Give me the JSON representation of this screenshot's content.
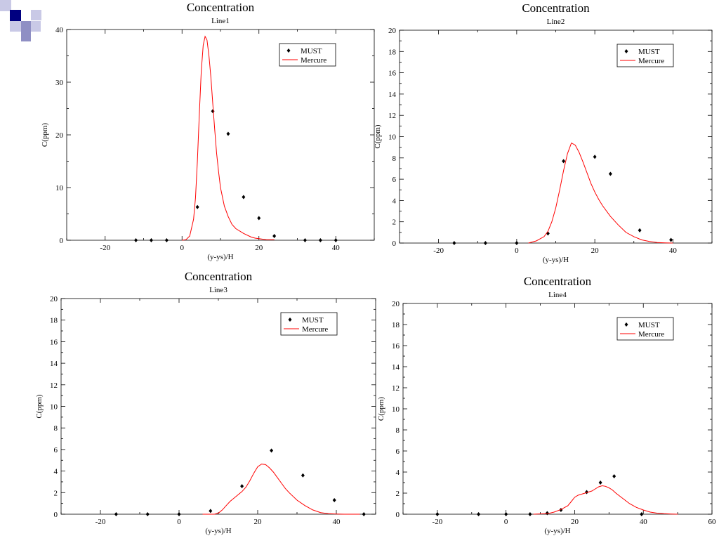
{
  "colors": {
    "model_line": "#ff0000",
    "markers": "#000000",
    "logo_dark": "#000080",
    "logo_mid": "#8f8fc4",
    "logo_light": "#c9c9e6"
  },
  "logo_icon": "squares-logo-icon",
  "chart_data": [
    {
      "type": "line",
      "title": "Concentration",
      "subtitle": "Line1",
      "xlabel": "(y-ys)/H",
      "ylabel": "C(ppm)",
      "xlim": [
        -30,
        50
      ],
      "ylim": [
        0,
        40
      ],
      "xticks": [
        -20,
        0,
        20,
        40
      ],
      "xtick_labels": [
        "-20",
        "0",
        "20",
        "40"
      ],
      "yticks": [
        0,
        10,
        20,
        30,
        40
      ],
      "ytick_labels": [
        "0",
        "10",
        "20",
        "30",
        "40"
      ],
      "grid": false,
      "legend": {
        "position": "top-right",
        "entries": [
          "MUST",
          "Mercure"
        ]
      },
      "series": [
        {
          "name": "MUST",
          "kind": "scatter",
          "x": [
            -12,
            -8,
            -4,
            4,
            8,
            12,
            16,
            20,
            24,
            32,
            36,
            40
          ],
          "y": [
            0,
            0,
            0,
            6.3,
            24.5,
            20.2,
            8.2,
            4.2,
            0.8,
            0,
            0,
            0
          ]
        },
        {
          "name": "Mercure",
          "kind": "line",
          "x": [
            0,
            1,
            2,
            3,
            3.5,
            4,
            4.5,
            5,
            5.5,
            6,
            6.5,
            7,
            7.5,
            8,
            8.5,
            9,
            9.5,
            10,
            11,
            12,
            13,
            14,
            16,
            18,
            19,
            20,
            22,
            23,
            24
          ],
          "y": [
            0,
            0.1,
            0.8,
            4,
            8,
            15,
            24,
            32,
            37,
            38.7,
            38,
            35,
            31,
            26,
            21,
            16.5,
            13,
            10,
            6.5,
            4.5,
            3,
            2.2,
            1.3,
            0.6,
            0.4,
            0.3,
            0.1,
            0.1,
            0.1
          ]
        }
      ]
    },
    {
      "type": "line",
      "title": "Concentration",
      "subtitle": "Line2",
      "xlabel": "(y-ys)/H",
      "ylabel": "C(ppm)",
      "xlim": [
        -30,
        50
      ],
      "ylim": [
        0,
        20
      ],
      "xticks": [
        -20,
        0,
        20,
        40
      ],
      "xtick_labels": [
        "-20",
        "0",
        "20",
        "40"
      ],
      "yticks": [
        0,
        2,
        4,
        6,
        8,
        10,
        12,
        14,
        16,
        18,
        20
      ],
      "ytick_labels": [
        "0",
        "2",
        "4",
        "6",
        "8",
        "10",
        "12",
        "14",
        "16",
        "18",
        "20"
      ],
      "grid": false,
      "legend": {
        "position": "top-right",
        "entries": [
          "MUST",
          "Mercure"
        ]
      },
      "series": [
        {
          "name": "MUST",
          "kind": "scatter",
          "x": [
            -16,
            -8,
            0,
            8,
            12,
            20,
            24,
            31.5,
            39.5
          ],
          "y": [
            0,
            0,
            0,
            0.9,
            7.7,
            8.1,
            6.5,
            1.2,
            0.3
          ]
        },
        {
          "name": "Mercure",
          "kind": "line",
          "x": [
            3,
            5,
            7,
            8,
            9,
            10,
            11,
            12,
            13,
            14,
            15,
            16,
            17,
            18,
            19,
            20,
            21,
            22,
            24,
            26,
            28,
            30,
            32,
            34,
            36,
            38,
            40
          ],
          "y": [
            0,
            0.2,
            0.6,
            1.1,
            2,
            3.3,
            5,
            6.8,
            8.4,
            9.4,
            9.2,
            8.5,
            7.6,
            6.6,
            5.6,
            4.8,
            4.1,
            3.5,
            2.5,
            1.7,
            1,
            0.6,
            0.3,
            0.15,
            0.05,
            0.02,
            0
          ]
        }
      ]
    },
    {
      "type": "line",
      "title": "Concentration",
      "subtitle": "Line3",
      "xlabel": "(y-ys)/H",
      "ylabel": "C(ppm)",
      "xlim": [
        -30,
        50
      ],
      "ylim": [
        0,
        20
      ],
      "xticks": [
        -20,
        0,
        20,
        40
      ],
      "xtick_labels": [
        "-20",
        "0",
        "20",
        "40"
      ],
      "yticks": [
        0,
        2,
        4,
        6,
        8,
        10,
        12,
        14,
        16,
        18,
        20
      ],
      "ytick_labels": [
        "0",
        "2",
        "4",
        "6",
        "8",
        "10",
        "12",
        "14",
        "16",
        "18",
        "20"
      ],
      "grid": false,
      "legend": {
        "position": "top-right",
        "entries": [
          "MUST",
          "Mercure"
        ]
      },
      "series": [
        {
          "name": "MUST",
          "kind": "scatter",
          "x": [
            -16,
            -8,
            0,
            8,
            16,
            23.5,
            31.5,
            39.5,
            47
          ],
          "y": [
            0,
            0,
            0,
            0.3,
            2.6,
            5.9,
            3.6,
            1.3,
            0
          ]
        },
        {
          "name": "Mercure",
          "kind": "line",
          "x": [
            6,
            9,
            10,
            11,
            12,
            13,
            14,
            15,
            16,
            17,
            18,
            19,
            20,
            21,
            22,
            23,
            24,
            25,
            26,
            27,
            28,
            30,
            32,
            34,
            36,
            38,
            40,
            42,
            44,
            46
          ],
          "y": [
            0,
            0,
            0.1,
            0.4,
            0.8,
            1.2,
            1.5,
            1.8,
            2.1,
            2.5,
            3.1,
            3.8,
            4.4,
            4.65,
            4.6,
            4.3,
            3.9,
            3.4,
            2.9,
            2.4,
            2,
            1.3,
            0.8,
            0.4,
            0.15,
            0.05,
            0.02,
            0,
            0,
            0
          ]
        }
      ]
    },
    {
      "type": "line",
      "title": "Concentration",
      "subtitle": "Line4",
      "xlabel": "(y-ys)/H",
      "ylabel": "C(ppm)",
      "xlim": [
        -30,
        60
      ],
      "ylim": [
        0,
        20
      ],
      "xticks": [
        -20,
        0,
        20,
        40,
        60
      ],
      "xtick_labels": [
        "-20",
        "0",
        "20",
        "40",
        "60"
      ],
      "yticks": [
        0,
        2,
        4,
        6,
        8,
        10,
        12,
        14,
        16,
        18,
        20
      ],
      "ytick_labels": [
        "0",
        "2",
        "4",
        "6",
        "8",
        "10",
        "12",
        "14",
        "16",
        "18",
        "20"
      ],
      "grid": false,
      "legend": {
        "position": "top-right",
        "entries": [
          "MUST",
          "Mercure"
        ]
      },
      "series": [
        {
          "name": "MUST",
          "kind": "scatter",
          "x": [
            -20,
            -8,
            0,
            7,
            12,
            16,
            23.5,
            27.5,
            31.5,
            39.5
          ],
          "y": [
            0,
            0,
            0,
            0,
            0.1,
            0.4,
            2.1,
            3,
            3.6,
            0
          ]
        },
        {
          "name": "Mercure",
          "kind": "line",
          "x": [
            8,
            12,
            14,
            16,
            18,
            19,
            20,
            21,
            22,
            23,
            24,
            25,
            26,
            27,
            28,
            29,
            30,
            31,
            32,
            34,
            36,
            38,
            40,
            42,
            44,
            46,
            48,
            50
          ],
          "y": [
            0,
            0.05,
            0.2,
            0.45,
            0.8,
            1.2,
            1.6,
            1.8,
            1.9,
            2,
            2.1,
            2.2,
            2.4,
            2.6,
            2.7,
            2.65,
            2.5,
            2.3,
            2,
            1.5,
            1,
            0.65,
            0.4,
            0.2,
            0.1,
            0.05,
            0.02,
            0
          ]
        }
      ]
    }
  ]
}
